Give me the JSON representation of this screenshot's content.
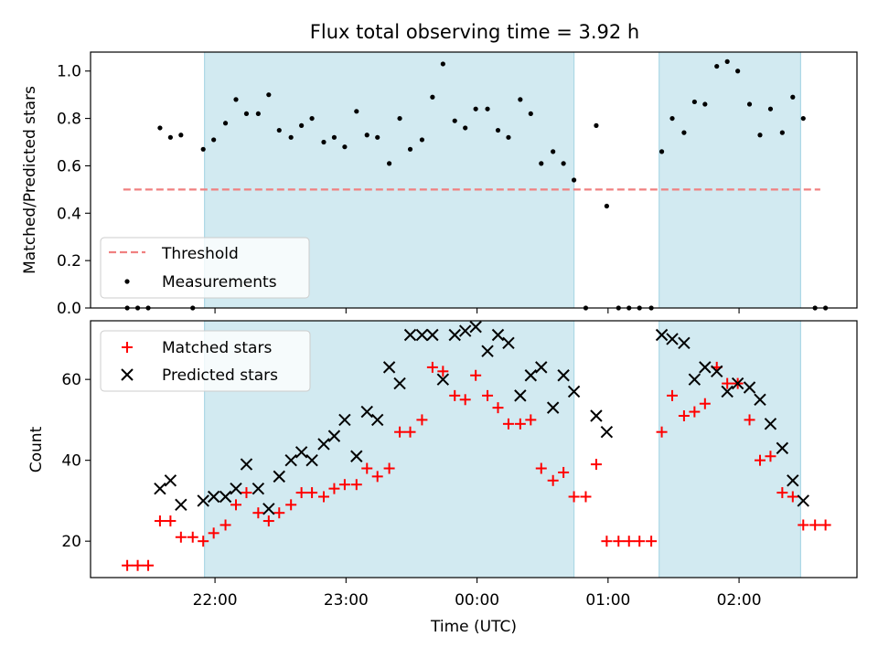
{
  "figure_title": "Flux total observing time = 3.92 h",
  "colors": {
    "shade": "#add8e6",
    "threshold": "#f08080",
    "measurements": "#000000",
    "matched": "#ff0000",
    "predicted": "#000000"
  },
  "chart_data": [
    {
      "type": "scatter",
      "panel": "top",
      "ylabel": "Matched/Predicted stars",
      "ylim": [
        0,
        1.08
      ],
      "yticks": [
        0.0,
        0.2,
        0.4,
        0.6,
        0.8,
        1.0
      ],
      "ytick_labels": [
        "0.0",
        "0.2",
        "0.4",
        "0.6",
        "0.8",
        "1.0"
      ],
      "xlim_hours": [
        -2.95,
        2.9
      ],
      "shaded_intervals_hours": [
        [
          -2.08,
          0.74
        ],
        [
          1.39,
          2.47
        ]
      ],
      "legend": {
        "placement": "lower-left",
        "entries": [
          "Threshold",
          "Measurements"
        ]
      },
      "threshold": {
        "name": "Threshold",
        "y": 0.5,
        "x_hours": [
          -2.7,
          2.62
        ]
      },
      "series": [
        {
          "name": "Measurements",
          "x_hours": [
            -2.67,
            -2.59,
            -2.51,
            -2.42,
            -2.34,
            -2.26,
            -2.17,
            -2.09,
            -2.01,
            -1.92,
            -1.84,
            -1.76,
            -1.67,
            -1.59,
            -1.51,
            -1.42,
            -1.34,
            -1.26,
            -1.17,
            -1.09,
            -1.01,
            -0.92,
            -0.84,
            -0.76,
            -0.67,
            -0.59,
            -0.51,
            -0.42,
            -0.34,
            -0.26,
            -0.17,
            -0.09,
            -0.01,
            0.08,
            0.16,
            0.24,
            0.33,
            0.41,
            0.49,
            0.58,
            0.66,
            0.74,
            0.83,
            0.91,
            0.99,
            1.08,
            1.16,
            1.24,
            1.33,
            1.41,
            1.49,
            1.58,
            1.66,
            1.74,
            1.83,
            1.91,
            1.99,
            2.08,
            2.16,
            2.24,
            2.33,
            2.41,
            2.49,
            2.58,
            2.66
          ],
          "y": [
            0.0,
            0.0,
            0.0,
            0.76,
            0.72,
            0.73,
            0.0,
            0.67,
            0.71,
            0.78,
            0.88,
            0.82,
            0.82,
            0.9,
            0.75,
            0.72,
            0.77,
            0.8,
            0.7,
            0.72,
            0.68,
            0.83,
            0.73,
            0.72,
            0.61,
            0.8,
            0.67,
            0.71,
            0.89,
            1.03,
            0.79,
            0.76,
            0.84,
            0.84,
            0.75,
            0.72,
            0.88,
            0.82,
            0.61,
            0.66,
            0.61,
            0.54,
            0.0,
            0.77,
            0.43,
            0.0,
            0.0,
            0.0,
            0.0,
            0.66,
            0.8,
            0.74,
            0.87,
            0.86,
            1.02,
            1.04,
            1.0,
            0.86,
            0.73,
            0.84,
            0.74,
            0.89,
            0.8,
            0.0,
            0.0
          ]
        }
      ]
    },
    {
      "type": "scatter",
      "panel": "bottom",
      "xlabel": "Time (UTC)",
      "ylabel": "Count",
      "ylim": [
        11,
        74.5
      ],
      "yticks": [
        20,
        40,
        60
      ],
      "ytick_labels": [
        "20",
        "40",
        "60"
      ],
      "xlim_hours": [
        -2.95,
        2.9
      ],
      "xticks_hours": [
        -2,
        -1,
        0,
        1,
        2
      ],
      "xtick_labels": [
        "22:00",
        "23:00",
        "00:00",
        "01:00",
        "02:00"
      ],
      "shaded_intervals_hours": [
        [
          -2.08,
          0.74
        ],
        [
          1.39,
          2.47
        ]
      ],
      "legend": {
        "placement": "upper-left",
        "entries": [
          "Matched stars",
          "Predicted stars"
        ]
      },
      "series": [
        {
          "name": "Matched stars",
          "marker": "+",
          "x_hours": [
            -2.67,
            -2.59,
            -2.51,
            -2.42,
            -2.34,
            -2.26,
            -2.17,
            -2.09,
            -2.01,
            -1.92,
            -1.84,
            -1.76,
            -1.67,
            -1.59,
            -1.51,
            -1.42,
            -1.34,
            -1.26,
            -1.17,
            -1.09,
            -1.01,
            -0.92,
            -0.84,
            -0.76,
            -0.67,
            -0.59,
            -0.51,
            -0.42,
            -0.34,
            -0.26,
            -0.17,
            -0.09,
            -0.01,
            0.08,
            0.16,
            0.24,
            0.33,
            0.41,
            0.49,
            0.58,
            0.66,
            0.74,
            0.83,
            0.91,
            0.99,
            1.08,
            1.16,
            1.24,
            1.33,
            1.41,
            1.49,
            1.58,
            1.66,
            1.74,
            1.83,
            1.91,
            1.99,
            2.08,
            2.16,
            2.24,
            2.33,
            2.41,
            2.49,
            2.58,
            2.66
          ],
          "y": [
            14,
            14,
            14,
            25,
            25,
            21,
            21,
            20,
            22,
            24,
            29,
            32,
            27,
            25,
            27,
            29,
            32,
            32,
            31,
            33,
            34,
            34,
            38,
            36,
            38,
            47,
            47,
            50,
            63,
            62,
            56,
            55,
            61,
            56,
            53,
            49,
            49,
            50,
            38,
            35,
            37,
            31,
            31,
            39,
            20,
            20,
            20,
            20,
            20,
            47,
            56,
            51,
            52,
            54,
            63,
            59,
            59,
            50,
            40,
            41,
            32,
            31,
            24,
            24,
            24
          ]
        },
        {
          "name": "Predicted stars",
          "marker": "x",
          "x_hours": [
            -2.42,
            -2.34,
            -2.26,
            -2.09,
            -2.01,
            -1.92,
            -1.84,
            -1.76,
            -1.67,
            -1.59,
            -1.51,
            -1.42,
            -1.34,
            -1.26,
            -1.17,
            -1.09,
            -1.01,
            -0.92,
            -0.84,
            -0.76,
            -0.67,
            -0.59,
            -0.51,
            -0.42,
            -0.34,
            -0.26,
            -0.17,
            -0.09,
            -0.01,
            0.08,
            0.16,
            0.24,
            0.33,
            0.41,
            0.49,
            0.58,
            0.66,
            0.74,
            0.91,
            0.99,
            1.41,
            1.49,
            1.58,
            1.66,
            1.74,
            1.83,
            1.91,
            1.99,
            2.08,
            2.16,
            2.24,
            2.33,
            2.41,
            2.49
          ],
          "y": [
            33,
            35,
            29,
            30,
            31,
            31,
            33,
            39,
            33,
            28,
            36,
            40,
            42,
            40,
            44,
            46,
            50,
            41,
            52,
            50,
            63,
            59,
            71,
            71,
            71,
            60,
            71,
            72,
            73,
            67,
            71,
            69,
            56,
            61,
            63,
            53,
            61,
            57,
            51,
            47,
            71,
            70,
            69,
            60,
            63,
            62,
            57,
            59,
            58,
            55,
            49,
            43,
            35,
            30
          ]
        }
      ]
    }
  ]
}
